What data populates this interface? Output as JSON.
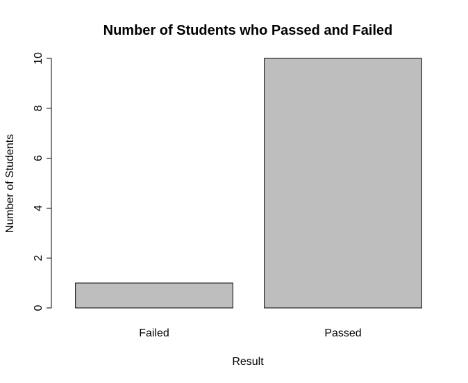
{
  "chart_data": {
    "type": "bar",
    "title": "Number of Students who Passed and Failed",
    "xlabel": "Result",
    "ylabel": "Number of Students",
    "categories": [
      "Failed",
      "Passed"
    ],
    "values": [
      1,
      10
    ],
    "ylim": [
      0,
      10
    ],
    "yticks": [
      0,
      2,
      4,
      6,
      8,
      10
    ],
    "bar_color": "#bebebe",
    "bar_stroke": "#000000",
    "grid": false,
    "legend": "none"
  }
}
